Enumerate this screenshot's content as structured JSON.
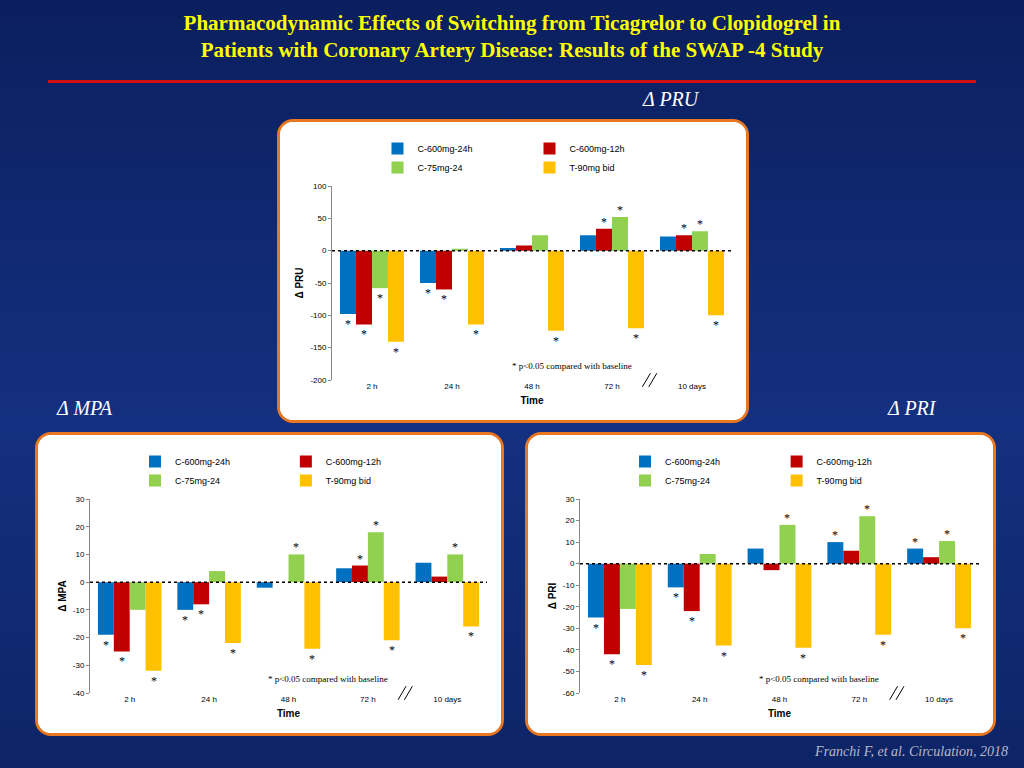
{
  "header": {
    "title": [
      "Pharmacodynamic Effects of Switching from Ticagrelor to Clopidogrel in",
      "Patients with Coronary Artery Disease: Results of the SWAP -4 Study"
    ],
    "citation": "Franchi F, et al. Circulation, 2018"
  },
  "chart_data": [
    {
      "type": "bar",
      "title": "Δ PRU",
      "x_label": "Time",
      "y_label": "Δ PRU",
      "categories": [
        "2 h",
        "24 h",
        "48 h",
        "72 h",
        "10 days"
      ],
      "series": [
        {
          "name": "C-600mg-24h",
          "color": "#0070C0",
          "values": [
            -98,
            -50,
            4,
            24,
            22
          ]
        },
        {
          "name": "C-600mg-12h",
          "color": "#C00000",
          "values": [
            -114,
            -60,
            8,
            34,
            24
          ]
        },
        {
          "name": "C-75mg-24",
          "color": "#92D050",
          "values": [
            -58,
            3,
            24,
            52,
            30
          ]
        },
        {
          "name": "T-90mg bid",
          "color": "#FFC000",
          "values": [
            -141,
            -114,
            -124,
            -120,
            -100
          ]
        }
      ],
      "ylim": [
        -200,
        100
      ],
      "yticks": [
        -200,
        -150,
        -100,
        -50,
        0,
        50,
        100
      ],
      "grid": false,
      "legend": "top",
      "annotations": [
        {
          "text": "* p<0.05 compared with baseline"
        },
        {
          "text": "*",
          "category": "2 h",
          "series": "C-600mg-24h"
        },
        {
          "text": "*",
          "category": "2 h",
          "series": "C-600mg-12h"
        },
        {
          "text": "*",
          "category": "2 h",
          "series": "C-75mg-24"
        },
        {
          "text": "*",
          "category": "2 h",
          "series": "T-90mg bid"
        },
        {
          "text": "*",
          "category": "24 h",
          "series": "C-600mg-24h"
        },
        {
          "text": "*",
          "category": "24 h",
          "series": "C-600mg-12h"
        },
        {
          "text": "*",
          "category": "24 h",
          "series": "T-90mg bid"
        },
        {
          "text": "*",
          "category": "48 h",
          "series": "T-90mg bid"
        },
        {
          "text": "*",
          "category": "72 h",
          "series": "C-600mg-12h"
        },
        {
          "text": "*",
          "category": "72 h",
          "series": "C-75mg-24"
        },
        {
          "text": "*",
          "category": "72 h",
          "series": "T-90mg bid"
        },
        {
          "text": "*",
          "category": "10 days",
          "series": "C-600mg-12h"
        },
        {
          "text": "*",
          "category": "10 days",
          "series": "C-75mg-24"
        },
        {
          "text": "*",
          "category": "10 days",
          "series": "T-90mg bid"
        }
      ]
    },
    {
      "type": "bar",
      "title": "Δ MPA",
      "x_label": "Time",
      "y_label": "Δ MPA",
      "categories": [
        "2 h",
        "24 h",
        "48 h",
        "72 h",
        "10 days"
      ],
      "series": [
        {
          "name": "C-600mg-24h",
          "color": "#0070C0",
          "values": [
            -19,
            -10,
            -2,
            5,
            7
          ]
        },
        {
          "name": "C-600mg-12h",
          "color": "#C00000",
          "values": [
            -25,
            -8,
            0,
            6,
            2
          ]
        },
        {
          "name": "C-75mg-24",
          "color": "#92D050",
          "values": [
            -10,
            4,
            10,
            18,
            10
          ]
        },
        {
          "name": "T-90mg bid",
          "color": "#FFC000",
          "values": [
            -32,
            -22,
            -24,
            -21,
            -16
          ]
        }
      ],
      "ylim": [
        -40,
        30
      ],
      "yticks": [
        -40,
        -30,
        -20,
        -10,
        0,
        10,
        20,
        30
      ],
      "grid": false,
      "legend": "top",
      "annotations": [
        {
          "text": "* p<0.05 compared with baseline"
        },
        {
          "text": "*",
          "category": "2 h",
          "series": "C-600mg-24h"
        },
        {
          "text": "*",
          "category": "2 h",
          "series": "C-600mg-12h"
        },
        {
          "text": "*",
          "category": "2 h",
          "series": "T-90mg bid"
        },
        {
          "text": "*",
          "category": "24 h",
          "series": "C-600mg-24h"
        },
        {
          "text": "*",
          "category": "24 h",
          "series": "C-600mg-12h"
        },
        {
          "text": "*",
          "category": "24 h",
          "series": "T-90mg bid"
        },
        {
          "text": "*",
          "category": "48 h",
          "series": "C-75mg-24"
        },
        {
          "text": "*",
          "category": "48 h",
          "series": "T-90mg bid"
        },
        {
          "text": "*",
          "category": "72 h",
          "series": "C-600mg-12h"
        },
        {
          "text": "*",
          "category": "72 h",
          "series": "C-75mg-24"
        },
        {
          "text": "*",
          "category": "72 h",
          "series": "T-90mg bid"
        },
        {
          "text": "*",
          "category": "10 days",
          "series": "C-75mg-24"
        },
        {
          "text": "*",
          "category": "10 days",
          "series": "T-90mg bid"
        }
      ]
    },
    {
      "type": "bar",
      "title": "Δ PRI",
      "x_label": "Time",
      "y_label": "Δ PRI",
      "categories": [
        "2 h",
        "24 h",
        "48 h",
        "72 h",
        "10 days"
      ],
      "series": [
        {
          "name": "C-600mg-24h",
          "color": "#0070C0",
          "values": [
            -25,
            -11,
            7,
            10,
            7
          ]
        },
        {
          "name": "C-600mg-12h",
          "color": "#C00000",
          "values": [
            -42,
            -22,
            -3,
            6,
            3
          ]
        },
        {
          "name": "C-75mg-24",
          "color": "#92D050",
          "values": [
            -21,
            4.5,
            18,
            22,
            10.5
          ]
        },
        {
          "name": "T-90mg bid",
          "color": "#FFC000",
          "values": [
            -47,
            -38,
            -39,
            -33,
            -30
          ]
        }
      ],
      "ylim": [
        -60,
        30
      ],
      "yticks": [
        -60,
        -50,
        -40,
        -30,
        -20,
        -10,
        0,
        10,
        20,
        30
      ],
      "grid": false,
      "legend": "top",
      "annotations": [
        {
          "text": "* p<0.05 compared with baseline"
        },
        {
          "text": "*",
          "category": "2 h",
          "series": "C-600mg-24h"
        },
        {
          "text": "*",
          "category": "2 h",
          "series": "C-600mg-12h"
        },
        {
          "text": "*",
          "category": "2 h",
          "series": "T-90mg bid"
        },
        {
          "text": "*",
          "category": "24 h",
          "series": "C-600mg-24h"
        },
        {
          "text": "*",
          "category": "24 h",
          "series": "C-600mg-12h"
        },
        {
          "text": "*",
          "category": "24 h",
          "series": "T-90mg bid"
        },
        {
          "text": "*",
          "category": "48 h",
          "series": "C-75mg-24"
        },
        {
          "text": "*",
          "category": "48 h",
          "series": "T-90mg bid"
        },
        {
          "text": "*",
          "category": "72 h",
          "series": "C-600mg-24h"
        },
        {
          "text": "*",
          "category": "72 h",
          "series": "C-75mg-24"
        },
        {
          "text": "*",
          "category": "72 h",
          "series": "T-90mg bid"
        },
        {
          "text": "*",
          "category": "10 days",
          "series": "C-600mg-24h"
        },
        {
          "text": "*",
          "category": "10 days",
          "series": "C-75mg-24"
        },
        {
          "text": "*",
          "category": "10 days",
          "series": "T-90mg bid"
        }
      ]
    }
  ]
}
